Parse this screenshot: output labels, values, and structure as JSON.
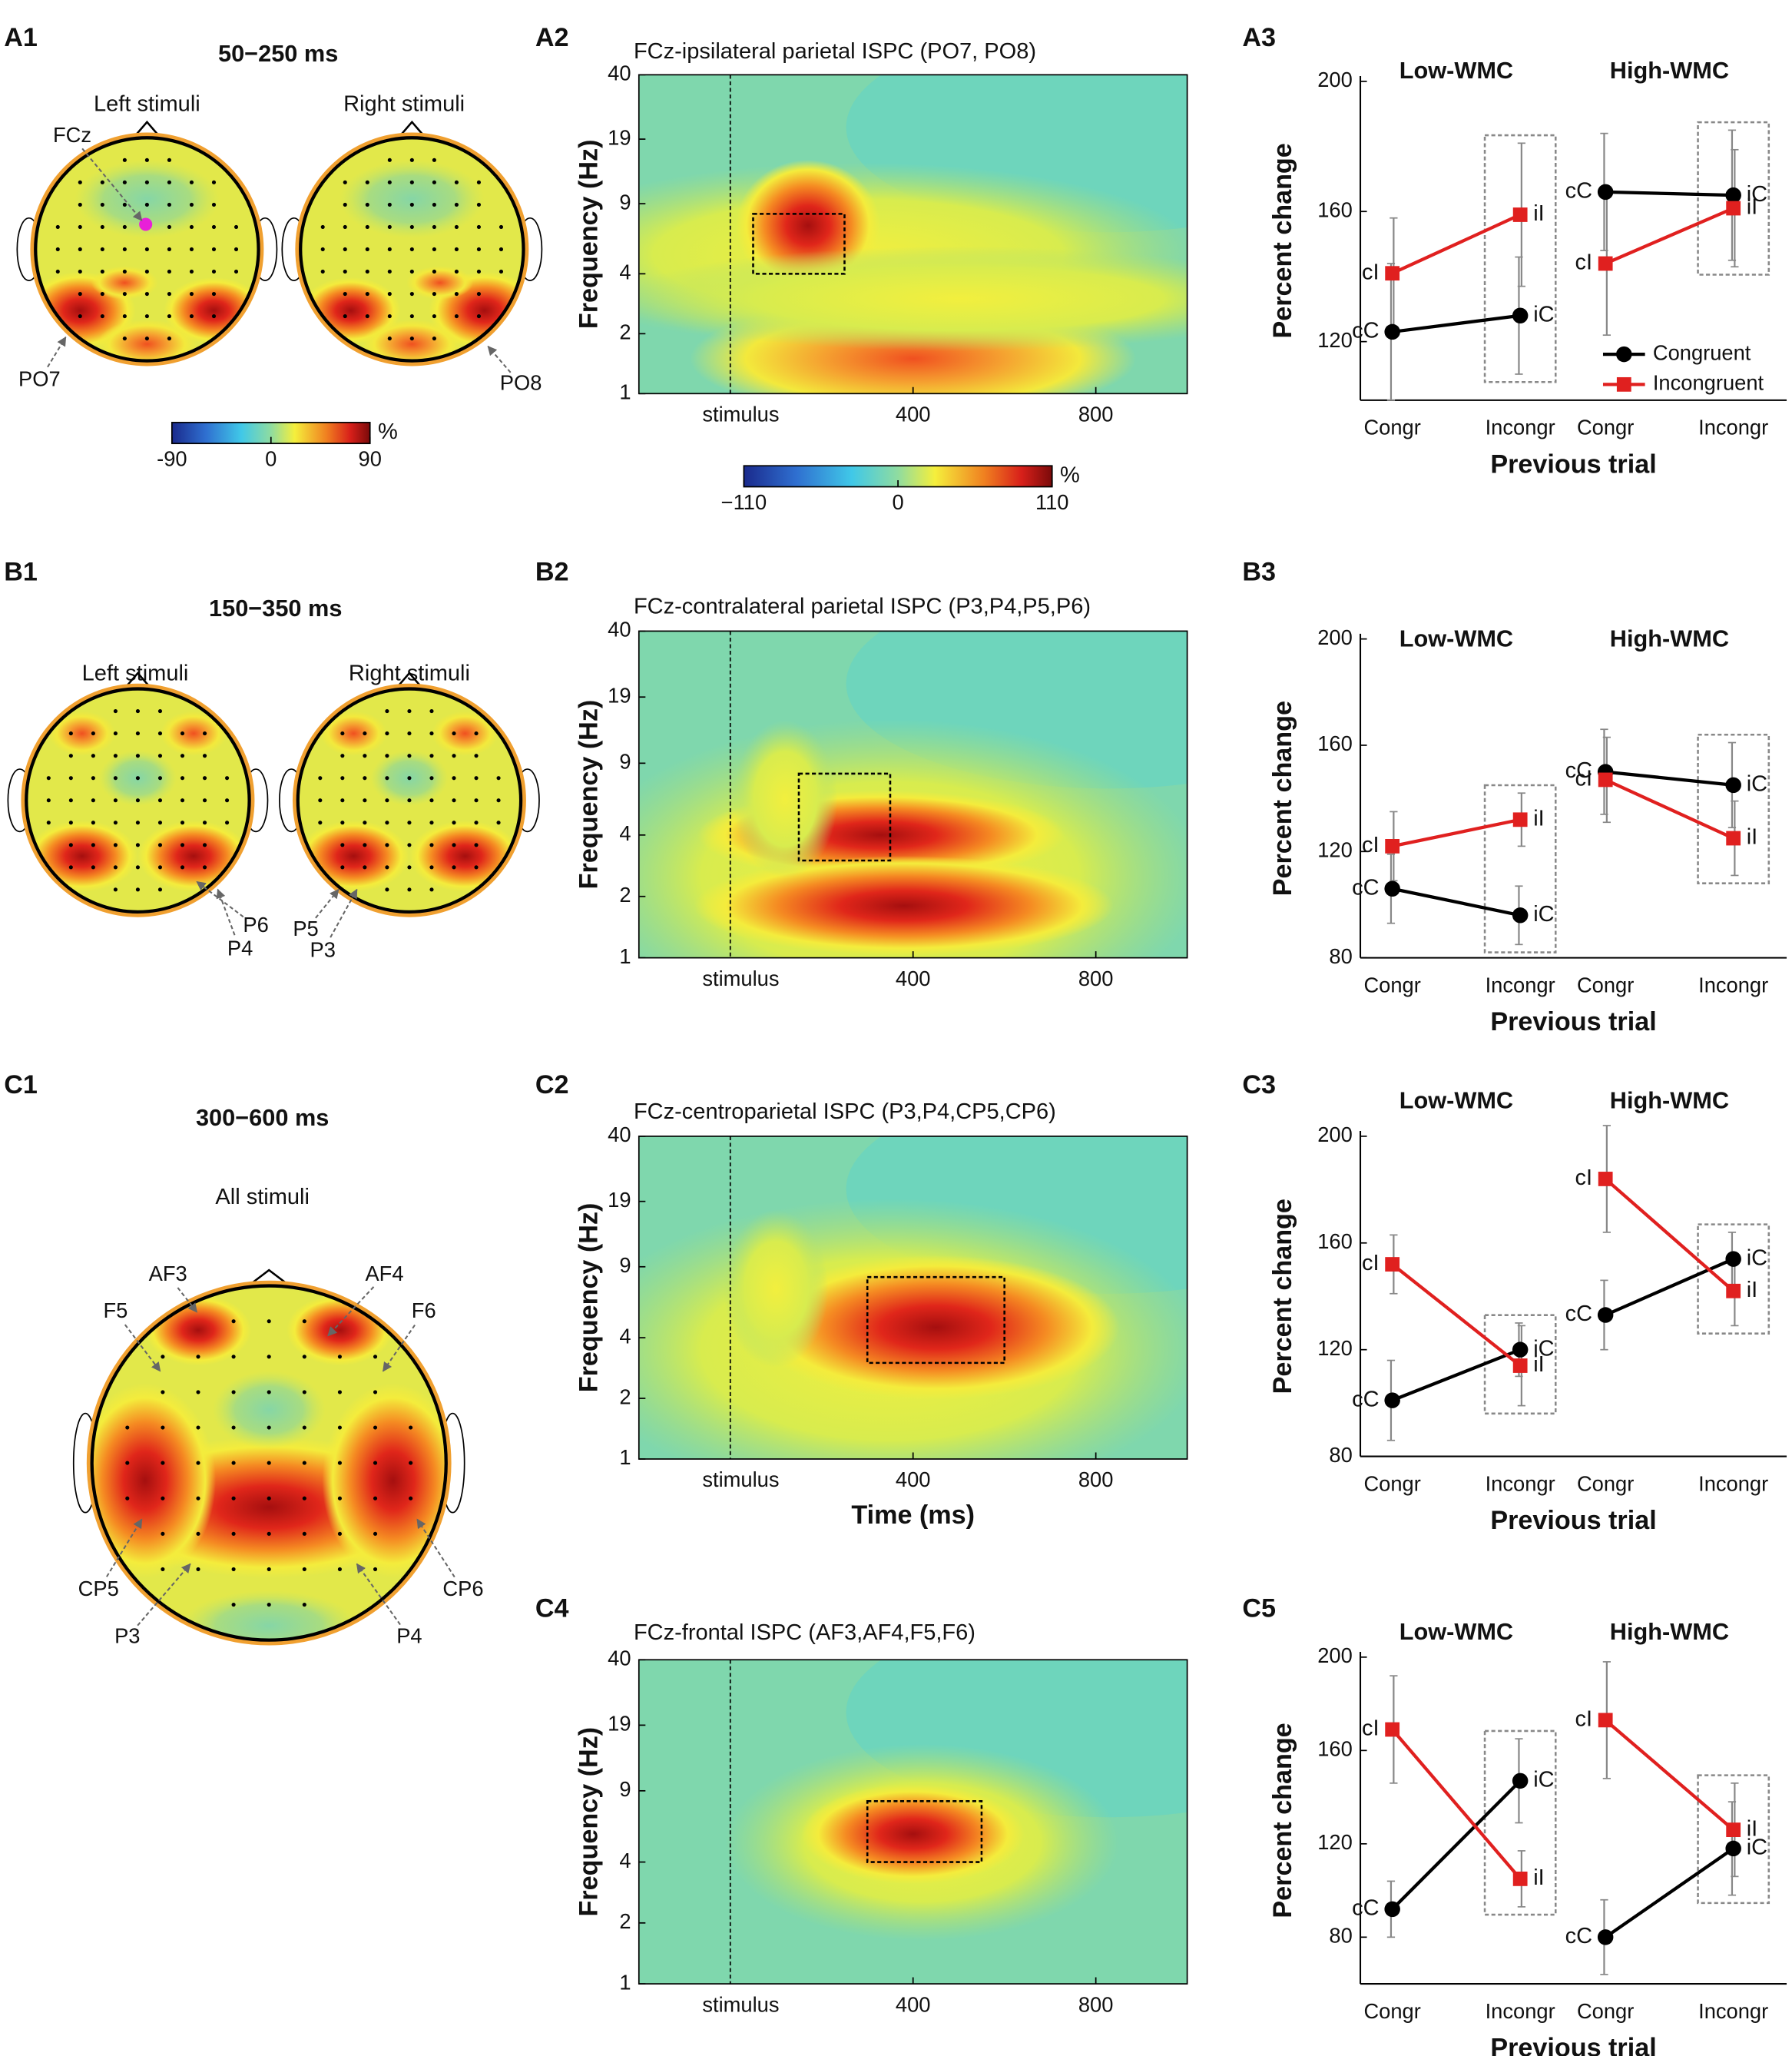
{
  "chart_data": [
    {
      "type": "topomap",
      "panel": "A1",
      "title": "50−250 ms",
      "maps": [
        "Left stimuli",
        "Right stimuli"
      ],
      "electrodes": [
        "FCz",
        "PO7",
        "PO8"
      ],
      "colorbar": {
        "ticks": [
          -90,
          0,
          90
        ],
        "unit": "%"
      }
    },
    {
      "type": "heatmap",
      "panel": "A2",
      "title": "FCz-ipsilateral parietal ISPC (PO7, PO8)",
      "ylabel": "Frequency (Hz)",
      "xlim": [
        -200,
        1000
      ],
      "xticks": [
        {
          "value": 0,
          "label": "stimulus"
        },
        400,
        800
      ],
      "ylim": [
        1,
        40
      ],
      "yticks": [
        1,
        2,
        4,
        9,
        19,
        40
      ],
      "log_y": true,
      "roi": {
        "time": [
          50,
          250
        ],
        "freq": [
          4,
          8
        ]
      },
      "colorbar": {
        "ticks": [
          {
            "value": -110,
            "label": "−110"
          },
          0,
          110
        ],
        "unit": "%"
      }
    },
    {
      "type": "line",
      "panel": "A3",
      "ylabel": "Percent change",
      "xlabel": "Previous trial",
      "ylim": [
        102,
        200
      ],
      "yticks": [
        120,
        160,
        200
      ],
      "groups": [
        "Low-WMC",
        "High-WMC"
      ],
      "categories": [
        "Congr",
        "Incongr"
      ],
      "legend": "lower right",
      "series": [
        {
          "name": "Congruent",
          "color": "#000000",
          "values": [
            [
              123,
              128
            ],
            [
              166,
              165
            ]
          ],
          "errors": [
            [
              21,
              18
            ],
            [
              18,
              20
            ]
          ],
          "point_labels": [
            [
              "cC",
              "iC"
            ],
            [
              "cC",
              "iC"
            ]
          ]
        },
        {
          "name": "Incongruent",
          "color": "#e0201f",
          "values": [
            [
              141,
              159
            ],
            [
              144,
              161
            ]
          ],
          "errors": [
            [
              17,
              22
            ],
            [
              22,
              18
            ]
          ],
          "point_labels": [
            [
              "cI",
              "iI"
            ],
            [
              "cI",
              "iI"
            ]
          ]
        }
      ]
    },
    {
      "type": "topomap",
      "panel": "B1",
      "title": "150−350 ms",
      "maps": [
        "Left stimuli",
        "Right stimuli"
      ],
      "electrodes": [
        "P6",
        "P4",
        "P5",
        "P3"
      ]
    },
    {
      "type": "heatmap",
      "panel": "B2",
      "title": "FCz-contralateral parietal ISPC (P3,P4,P5,P6)",
      "ylabel": "Frequency (Hz)",
      "xlim": [
        -200,
        1000
      ],
      "xticks": [
        {
          "value": 0,
          "label": "stimulus"
        },
        400,
        800
      ],
      "ylim": [
        1,
        40
      ],
      "yticks": [
        1,
        2,
        4,
        9,
        19,
        40
      ],
      "log_y": true,
      "roi": {
        "time": [
          150,
          350
        ],
        "freq": [
          3,
          8
        ]
      }
    },
    {
      "type": "line",
      "panel": "B3",
      "ylabel": "Percent change",
      "xlabel": "Previous trial",
      "ylim": [
        80,
        200
      ],
      "yticks": [
        80,
        120,
        160,
        200
      ],
      "groups": [
        "Low-WMC",
        "High-WMC"
      ],
      "categories": [
        "Congr",
        "Incongr"
      ],
      "series": [
        {
          "color": "#000000",
          "values": [
            [
              106,
              96
            ],
            [
              150,
              145
            ]
          ],
          "errors": [
            [
              13,
              11
            ],
            [
              16,
              16
            ]
          ],
          "point_labels": [
            [
              "cC",
              "iC"
            ],
            [
              "cC",
              "iC"
            ]
          ]
        },
        {
          "color": "#e0201f",
          "values": [
            [
              122,
              132
            ],
            [
              147,
              125
            ]
          ],
          "errors": [
            [
              13,
              10
            ],
            [
              16,
              14
            ]
          ],
          "point_labels": [
            [
              "cI",
              "iI"
            ],
            [
              "cI",
              "iI"
            ]
          ]
        }
      ]
    },
    {
      "type": "topomap",
      "panel": "C1",
      "title": "300−600 ms",
      "maps": [
        "All stimuli"
      ],
      "electrodes": [
        "AF3",
        "AF4",
        "F5",
        "F6",
        "CP5",
        "CP6",
        "P3",
        "P4"
      ]
    },
    {
      "type": "heatmap",
      "panel": "C2",
      "title": "FCz-centroparietal ISPC (P3,P4,CP5,CP6)",
      "ylabel": "Frequency (Hz)",
      "xlabel": "Time (ms)",
      "xlim": [
        -200,
        1000
      ],
      "xticks": [
        {
          "value": 0,
          "label": "stimulus"
        },
        400,
        800
      ],
      "ylim": [
        1,
        40
      ],
      "yticks": [
        1,
        2,
        4,
        9,
        19,
        40
      ],
      "log_y": true,
      "roi": {
        "time": [
          300,
          600
        ],
        "freq": [
          3,
          8
        ]
      }
    },
    {
      "type": "line",
      "panel": "C3",
      "ylabel": "Percent change",
      "xlabel": "Previous trial",
      "ylim": [
        80,
        200
      ],
      "yticks": [
        80,
        120,
        160,
        200
      ],
      "groups": [
        "Low-WMC",
        "High-WMC"
      ],
      "categories": [
        "Congr",
        "Incongr"
      ],
      "series": [
        {
          "color": "#000000",
          "values": [
            [
              101,
              120
            ],
            [
              133,
              154
            ]
          ],
          "errors": [
            [
              15,
              10
            ],
            [
              13,
              10
            ]
          ],
          "point_labels": [
            [
              "cC",
              "iC"
            ],
            [
              "cC",
              "iC"
            ]
          ]
        },
        {
          "color": "#e0201f",
          "values": [
            [
              152,
              114
            ],
            [
              184,
              142
            ]
          ],
          "errors": [
            [
              11,
              15
            ],
            [
              20,
              13
            ]
          ],
          "point_labels": [
            [
              "cI",
              "iI"
            ],
            [
              "cI",
              "iI"
            ]
          ]
        }
      ]
    },
    {
      "type": "heatmap",
      "panel": "C4",
      "title": "FCz-frontal ISPC (AF3,AF4,F5,F6)",
      "ylabel": "Frequency (Hz)",
      "xlim": [
        -200,
        1000
      ],
      "xticks": [
        {
          "value": 0,
          "label": "stimulus"
        },
        400,
        800
      ],
      "ylim": [
        1,
        40
      ],
      "yticks": [
        1,
        2,
        4,
        9,
        19,
        40
      ],
      "log_y": true,
      "roi": {
        "time": [
          300,
          550
        ],
        "freq": [
          4,
          8
        ]
      }
    },
    {
      "type": "line",
      "panel": "C5",
      "ylabel": "Percent change",
      "xlabel": "Previous trial",
      "ylim": [
        60,
        200
      ],
      "yticks": [
        80,
        120,
        160,
        200
      ],
      "groups": [
        "Low-WMC",
        "High-WMC"
      ],
      "categories": [
        "Congr",
        "Incongr"
      ],
      "series": [
        {
          "color": "#000000",
          "values": [
            [
              92,
              147
            ],
            [
              80,
              118
            ]
          ],
          "errors": [
            [
              12,
              18
            ],
            [
              16,
              20
            ]
          ],
          "point_labels": [
            [
              "cC",
              "iC"
            ],
            [
              "cC",
              "iC"
            ]
          ]
        },
        {
          "color": "#e0201f",
          "values": [
            [
              169,
              105
            ],
            [
              173,
              126
            ]
          ],
          "errors": [
            [
              23,
              12
            ],
            [
              25,
              20
            ]
          ],
          "point_labels": [
            [
              "cI",
              "iI"
            ],
            [
              "cI",
              "iI"
            ]
          ]
        }
      ]
    }
  ]
}
